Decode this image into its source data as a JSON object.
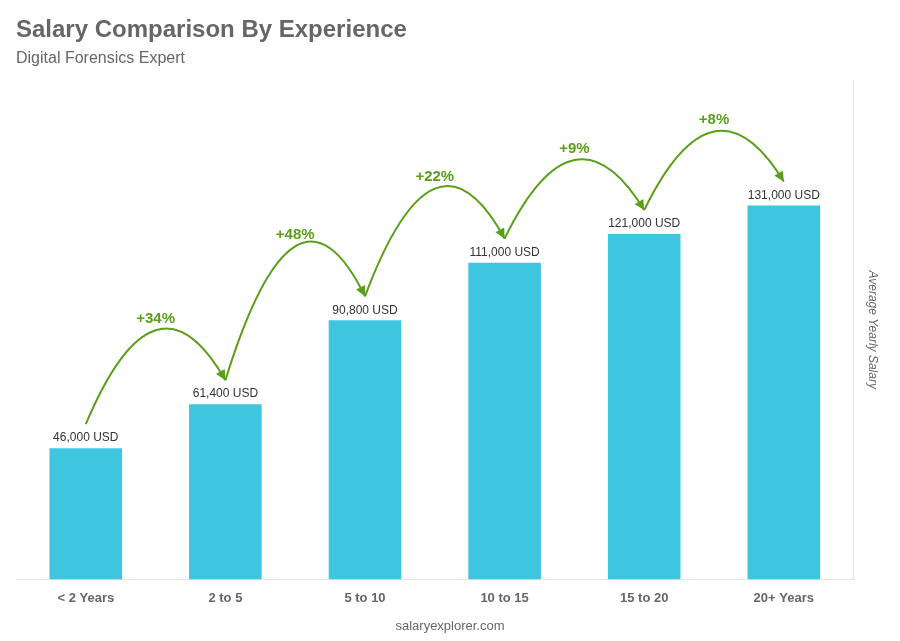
{
  "chart_data": {
    "type": "bar",
    "title": "Salary Comparison By Experience",
    "subtitle": "Digital Forensics Expert",
    "ylabel": "Average Yearly Salary",
    "footer": "salaryexplorer.com",
    "categories": [
      "< 2 Years",
      "2 to 5",
      "5 to 10",
      "10 to 15",
      "15 to 20",
      "20+ Years"
    ],
    "values": [
      46000,
      61400,
      90800,
      111000,
      121000,
      131000
    ],
    "value_labels": [
      "46,000 USD",
      "61,400 USD",
      "90,800 USD",
      "111,000 USD",
      "121,000 USD",
      "131,000 USD"
    ],
    "data_labels": true,
    "annotations": [
      "+34%",
      "+48%",
      "+22%",
      "+9%",
      "+8%"
    ],
    "color": "#3ec6e0",
    "ylim": [
      0,
      175000
    ],
    "tick_labels": "x",
    "grid": false
  }
}
